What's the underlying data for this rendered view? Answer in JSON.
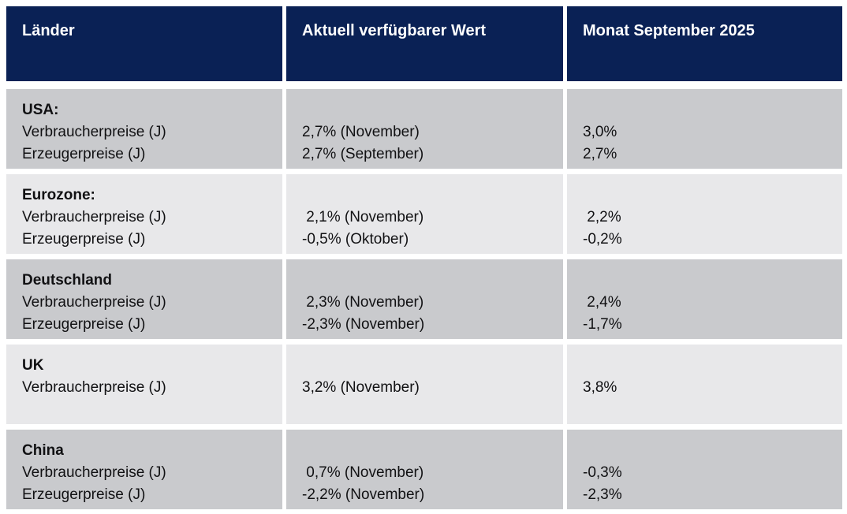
{
  "table": {
    "header": {
      "col1": "Länder",
      "col2": "Aktuell verfügbarer Wert",
      "col3": "Monat September 2025"
    },
    "rows": [
      {
        "country": "USA:",
        "indicators": "Verbraucherpreise (J)\nErzeugerpreise (J)",
        "current": "2,7% (November)\n2,7% (September)",
        "september": "3,0%\n2,7%"
      },
      {
        "country": "Eurozone:",
        "indicators": "Verbraucherpreise (J)\nErzeugerpreise (J)",
        "current": " 2,1% (November)\n-0,5% (Oktober)",
        "september": " 2,2%\n-0,2%"
      },
      {
        "country": "Deutschland",
        "indicators": "Verbraucherpreise (J)\nErzeugerpreise (J)",
        "current": " 2,3% (November)\n-2,3% (November)",
        "september": " 2,4%\n-1,7%"
      },
      {
        "country": "UK",
        "indicators": "Verbraucherpreise (J)",
        "current": "3,2% (November)",
        "september": "3,8%"
      },
      {
        "country": "China",
        "indicators": "Verbraucherpreise (J)\nErzeugerpreise (J)",
        "current": " 0,7% (November)\n-2,2% (November)",
        "september": "-0,3%\n-2,3%"
      }
    ],
    "colors": {
      "header_bg": "#0a2155",
      "header_text": "#ffffff",
      "row_dark_bg": "#c9cacd",
      "row_light_bg": "#e8e8ea",
      "body_text": "#111113"
    }
  }
}
